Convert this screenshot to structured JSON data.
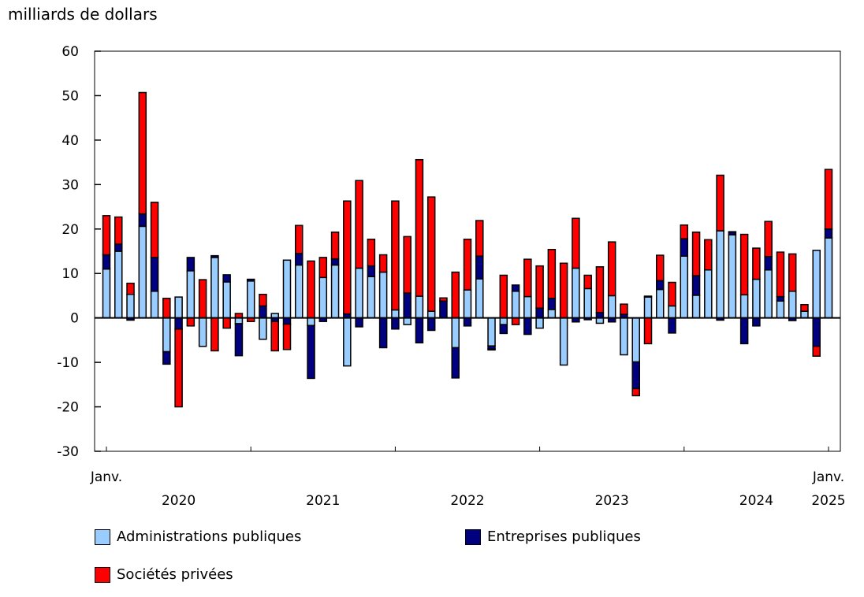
{
  "chart_data": {
    "type": "bar",
    "stacked": true,
    "ylabel": "milliards de dollars",
    "ylim": [
      -30,
      60
    ],
    "yticks": [
      60,
      50,
      40,
      30,
      20,
      10,
      0,
      -10,
      -20,
      -30
    ],
    "x_start_label": "Janv.",
    "x_end_label": "Janv.",
    "year_labels": [
      "2020",
      "2021",
      "2022",
      "2023",
      "2024",
      "2025"
    ],
    "x_period": "monthly, Jan 2020 to Jan 2025",
    "grid": false,
    "legend_position": "bottom",
    "series": [
      {
        "name": "Administrations publiques",
        "color": "#99ccff",
        "values": [
          11,
          15,
          5.3,
          20.6,
          6,
          -7.6,
          4.7,
          10.6,
          -6.4,
          13.6,
          8.1,
          -1.3,
          8.3,
          -4.8,
          1.0,
          13,
          11.9,
          -1.7,
          9.1,
          11.9,
          -10.8,
          11.2,
          9.3,
          10.3,
          1.8,
          -1.5,
          4.9,
          1.5,
          0,
          -6.7,
          6.3,
          8.8,
          -6.3,
          -1.5,
          6.0,
          4.8,
          -2.3,
          1.9,
          -10.6,
          11.2,
          6.6,
          -1.2,
          5.0,
          -8.3,
          -9.9,
          4.7,
          6.4,
          2.7,
          13.9,
          5.1,
          10.8,
          19.6,
          18.7,
          5.2,
          8.7,
          10.8,
          3.8,
          6.0,
          1.5,
          15.2,
          18.0
        ]
      },
      {
        "name": "Entreprises publiques",
        "color": "#000080",
        "values": [
          3.2,
          1.6,
          -0.5,
          2.8,
          7.6,
          -2.8,
          -2.5,
          3,
          0,
          0.4,
          1.6,
          -7.2,
          0.4,
          2.7,
          -0.8,
          -1.4,
          2.6,
          -11.9,
          -0.8,
          1.4,
          0.9,
          -2.0,
          2.4,
          -6.7,
          -2.5,
          5.6,
          -5.6,
          -2.8,
          3.8,
          -6.8,
          -1.8,
          5.1,
          -0.7,
          -2.0,
          1.4,
          -3.7,
          2.2,
          2.5,
          0,
          -0.9,
          -0.4,
          1.2,
          -0.9,
          0.8,
          -6.0,
          0.2,
          2.0,
          -3.4,
          3.9,
          4.4,
          0,
          -0.5,
          0.6,
          -5.8,
          -1.8,
          3.0,
          1.0,
          -0.6,
          0,
          -6.4,
          2.0
        ]
      },
      {
        "name": "Sociétés privées",
        "color": "#ff0000",
        "values": [
          8.8,
          6.1,
          2.5,
          27.3,
          12.4,
          4.4,
          -17.5,
          -1.8,
          8.6,
          -7.4,
          -2.3,
          1.0,
          -0.8,
          2.6,
          -6.6,
          -5.7,
          6.3,
          12.8,
          4.5,
          6.0,
          25.4,
          19.7,
          6.0,
          3.9,
          24.5,
          12.7,
          30.7,
          25.7,
          0.7,
          10.3,
          11.4,
          8.0,
          -0.2,
          9.6,
          -1.5,
          8.4,
          9.5,
          11.0,
          12.3,
          11.2,
          3.0,
          10.3,
          12.1,
          2.3,
          -1.6,
          -5.8,
          5.7,
          5.3,
          3.1,
          9.8,
          6.8,
          12.5,
          0.1,
          13.6,
          7.0,
          7.9,
          10.0,
          8.4,
          1.5,
          -2.2,
          13.4
        ]
      }
    ]
  }
}
